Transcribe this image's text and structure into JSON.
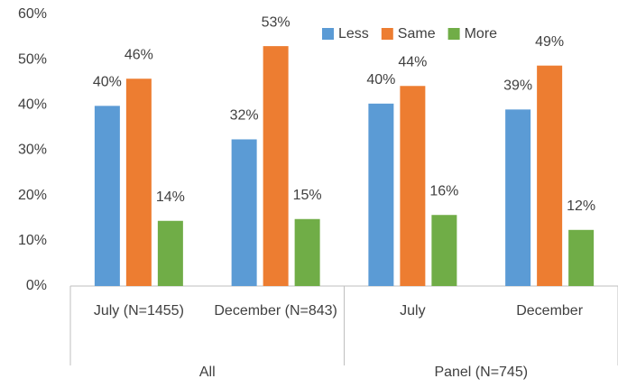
{
  "chart_data": {
    "type": "bar",
    "groups": [
      {
        "label": "All",
        "categories": [
          "July (N=1455)",
          "December (N=843)"
        ]
      },
      {
        "label": "Panel (N=745)",
        "categories": [
          "July",
          "December"
        ]
      }
    ],
    "series": [
      {
        "name": "Less",
        "color": "#5b9bd5",
        "values": [
          39.8,
          32.4,
          40.3,
          39.0
        ],
        "value_labels": [
          "40%",
          "32%",
          "40%",
          "39%"
        ]
      },
      {
        "name": "Same",
        "color": "#ed7d31",
        "values": [
          45.8,
          53.0,
          44.2,
          48.7
        ],
        "value_labels": [
          "46%",
          "53%",
          "44%",
          "49%"
        ]
      },
      {
        "name": "More",
        "color": "#70ad47",
        "values": [
          14.4,
          14.8,
          15.7,
          12.4
        ],
        "value_labels": [
          "14%",
          "15%",
          "16%",
          "12%"
        ]
      }
    ],
    "ylim": [
      0,
      60
    ],
    "yticks": [
      {
        "value": 0,
        "label": "0%"
      },
      {
        "value": 10,
        "label": "10%"
      },
      {
        "value": 20,
        "label": "20%"
      },
      {
        "value": 30,
        "label": "30%"
      },
      {
        "value": 40,
        "label": "40%"
      },
      {
        "value": 50,
        "label": "50%"
      },
      {
        "value": 60,
        "label": "60%"
      }
    ],
    "grid": false,
    "legend": "top-right"
  }
}
